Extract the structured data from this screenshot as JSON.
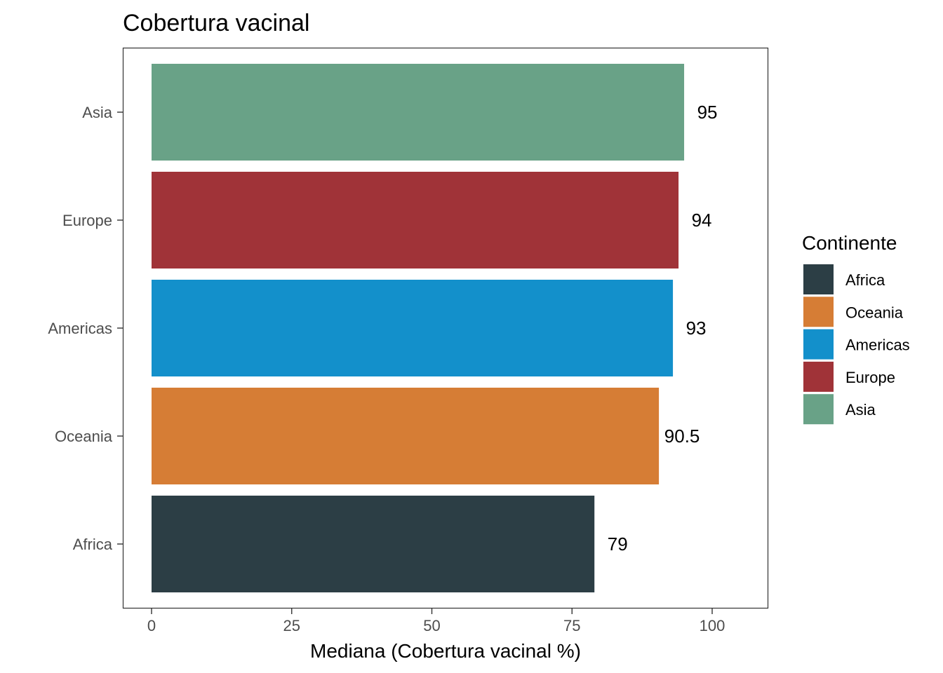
{
  "chart_data": {
    "type": "bar",
    "orientation": "horizontal",
    "title": "Cobertura vacinal",
    "xlabel": "Mediana (Cobertura vacinal %)",
    "ylabel": "",
    "xlim": [
      0,
      100
    ],
    "xticks": [
      0,
      25,
      50,
      75,
      100
    ],
    "categories": [
      "Africa",
      "Oceania",
      "Americas",
      "Europe",
      "Asia"
    ],
    "values": [
      79,
      90.5,
      93,
      94,
      95
    ],
    "value_labels": [
      "79",
      "90.5",
      "93",
      "94",
      "95"
    ],
    "colors": [
      "#2c3e45",
      "#d67d35",
      "#1390cb",
      "#a03338",
      "#69a287"
    ],
    "grid": false,
    "legend": {
      "title": "Continente",
      "placement": "right",
      "items": [
        "Africa",
        "Oceania",
        "Americas",
        "Europe",
        "Asia"
      ]
    }
  }
}
